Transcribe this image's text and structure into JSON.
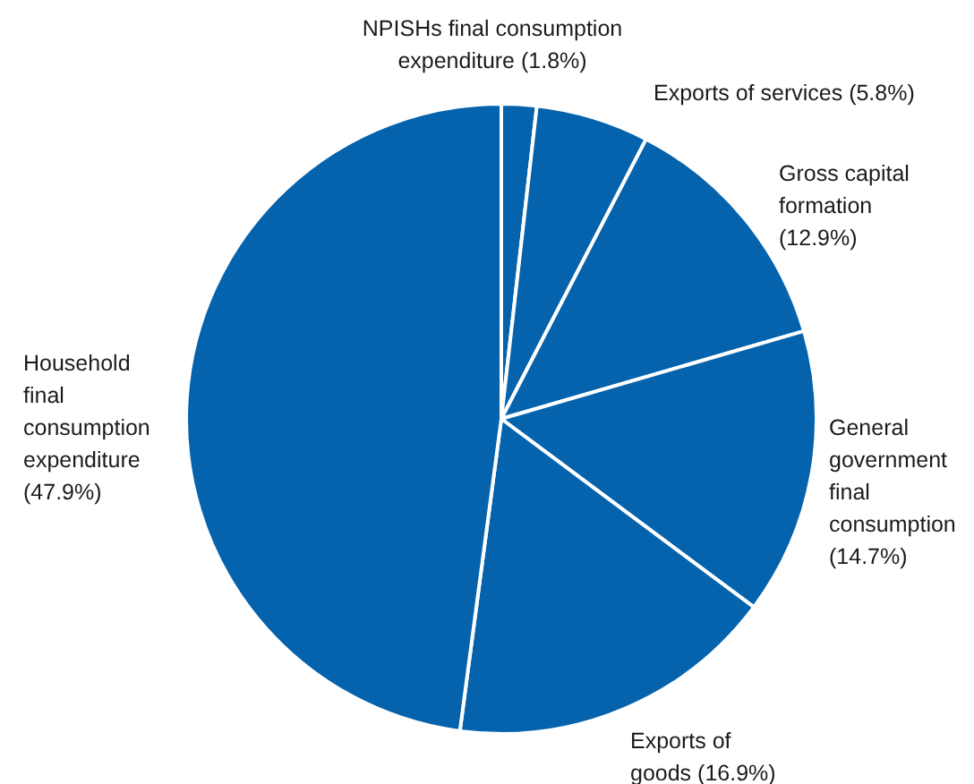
{
  "chart_data": {
    "type": "pie",
    "categories": [
      "NPISHs final consumption expenditure",
      "Exports of services",
      "Gross capital formation",
      "General government final consumption",
      "Exports of goods",
      "Household final consumption expenditure"
    ],
    "values": [
      1.8,
      5.8,
      12.9,
      14.7,
      16.9,
      47.9
    ],
    "value_labels": [
      "(1.8%)",
      "(5.8%)",
      "(12.9%)",
      "(14.7%)",
      "(16.9%)",
      "(47.9%)"
    ],
    "colors": [
      "#0563ad",
      "#0563ad",
      "#0563ad",
      "#0563ad",
      "#0563ad",
      "#0563ad"
    ]
  }
}
